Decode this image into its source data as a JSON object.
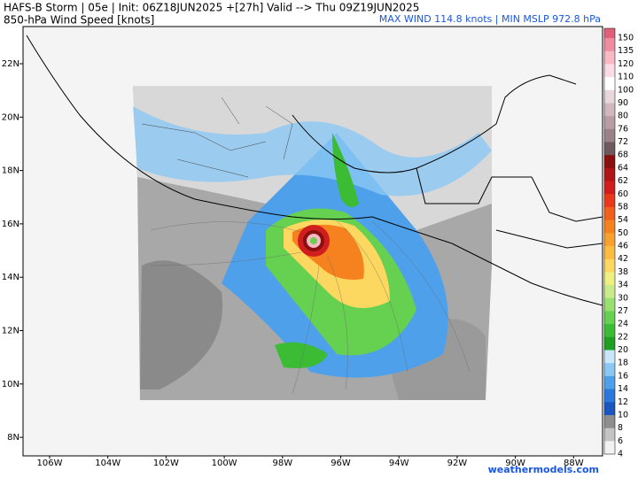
{
  "header": {
    "title": "HAFS-B Storm | 05e | Init: 06Z18JUN2025 +[27h] Valid --> Thu 09Z19JUN2025",
    "subtitle": "850-hPa Wind Speed [knots]",
    "stats": "MAX WIND 114.8 knots | MIN MSLP 972.8 hPa"
  },
  "map": {
    "lat_labels": [
      "22N",
      "20N",
      "18N",
      "16N",
      "14N",
      "12N",
      "10N",
      "8N"
    ],
    "lon_labels": [
      "106W",
      "104W",
      "102W",
      "100W",
      "98W",
      "96W",
      "94W",
      "92W",
      "90W",
      "88W"
    ],
    "watermark": "weathermodels.com"
  },
  "colorbar": {
    "levels": [
      {
        "value": 150,
        "color": "#e0607a"
      },
      {
        "value": 135,
        "color": "#f08ca0"
      },
      {
        "value": 120,
        "color": "#f8b8c4"
      },
      {
        "value": 110,
        "color": "#fcdce2"
      },
      {
        "value": 100,
        "color": "#ffffff"
      },
      {
        "value": 90,
        "color": "#e8d8da"
      },
      {
        "value": 80,
        "color": "#d0b8bc"
      },
      {
        "value": 76,
        "color": "#b89ea2"
      },
      {
        "value": 72,
        "color": "#9a8286"
      },
      {
        "value": 68,
        "color": "#6e5a5e"
      },
      {
        "value": 64,
        "color": "#8a1010"
      },
      {
        "value": 62,
        "color": "#b01414"
      },
      {
        "value": 60,
        "color": "#d01e1e"
      },
      {
        "value": 58,
        "color": "#e83a1a"
      },
      {
        "value": 54,
        "color": "#f0601c"
      },
      {
        "value": 50,
        "color": "#f5821e"
      },
      {
        "value": 46,
        "color": "#f8a030"
      },
      {
        "value": 42,
        "color": "#fbbc40"
      },
      {
        "value": 38,
        "color": "#fdd860"
      },
      {
        "value": 34,
        "color": "#eef080"
      },
      {
        "value": 30,
        "color": "#c8ec8a"
      },
      {
        "value": 27,
        "color": "#98e070"
      },
      {
        "value": 24,
        "color": "#66d050"
      },
      {
        "value": 22,
        "color": "#3cbc34"
      },
      {
        "value": 20,
        "color": "#1e9e22"
      },
      {
        "value": 18,
        "color": "#c8e8fa"
      },
      {
        "value": 16,
        "color": "#8cc8f4"
      },
      {
        "value": 14,
        "color": "#4ea0ea"
      },
      {
        "value": 12,
        "color": "#2a78dc"
      },
      {
        "value": 10,
        "color": "#1a56c0"
      },
      {
        "value": 8,
        "color": "#8e8e8e"
      },
      {
        "value": 6,
        "color": "#c4c4c4"
      },
      {
        "value": 4,
        "color": "#f2f2f2"
      }
    ]
  }
}
